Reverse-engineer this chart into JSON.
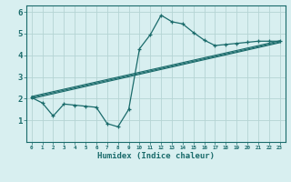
{
  "title": "",
  "xlabel": "Humidex (Indice chaleur)",
  "ylabel": "",
  "bg_color": "#d8eff0",
  "grid_color": "#b5d4d4",
  "line_color": "#1a6b6b",
  "xlim": [
    -0.5,
    23.5
  ],
  "ylim": [
    0,
    6.3
  ],
  "xtick_labels": [
    "0",
    "1",
    "2",
    "3",
    "4",
    "5",
    "6",
    "7",
    "8",
    "9",
    "10",
    "11",
    "12",
    "13",
    "14",
    "15",
    "16",
    "17",
    "18",
    "19",
    "20",
    "21",
    "22",
    "23"
  ],
  "ytick_vals": [
    1,
    2,
    3,
    4,
    5,
    6
  ],
  "main_x": [
    0,
    1,
    2,
    3,
    4,
    5,
    6,
    7,
    8,
    9,
    10,
    11,
    12,
    13,
    14,
    15,
    16,
    17,
    18,
    19,
    20,
    21,
    22,
    23
  ],
  "main_y": [
    2.05,
    1.8,
    1.2,
    1.75,
    1.7,
    1.65,
    1.6,
    0.85,
    0.7,
    1.5,
    4.3,
    4.95,
    5.85,
    5.55,
    5.45,
    5.05,
    4.7,
    4.45,
    4.5,
    4.55,
    4.6,
    4.65,
    4.65,
    4.65
  ],
  "line1_x": [
    0,
    23
  ],
  "line1_y": [
    2.0,
    4.58
  ],
  "line2_x": [
    0,
    23
  ],
  "line2_y": [
    2.05,
    4.62
  ],
  "line3_x": [
    0,
    23
  ],
  "line3_y": [
    2.1,
    4.67
  ]
}
